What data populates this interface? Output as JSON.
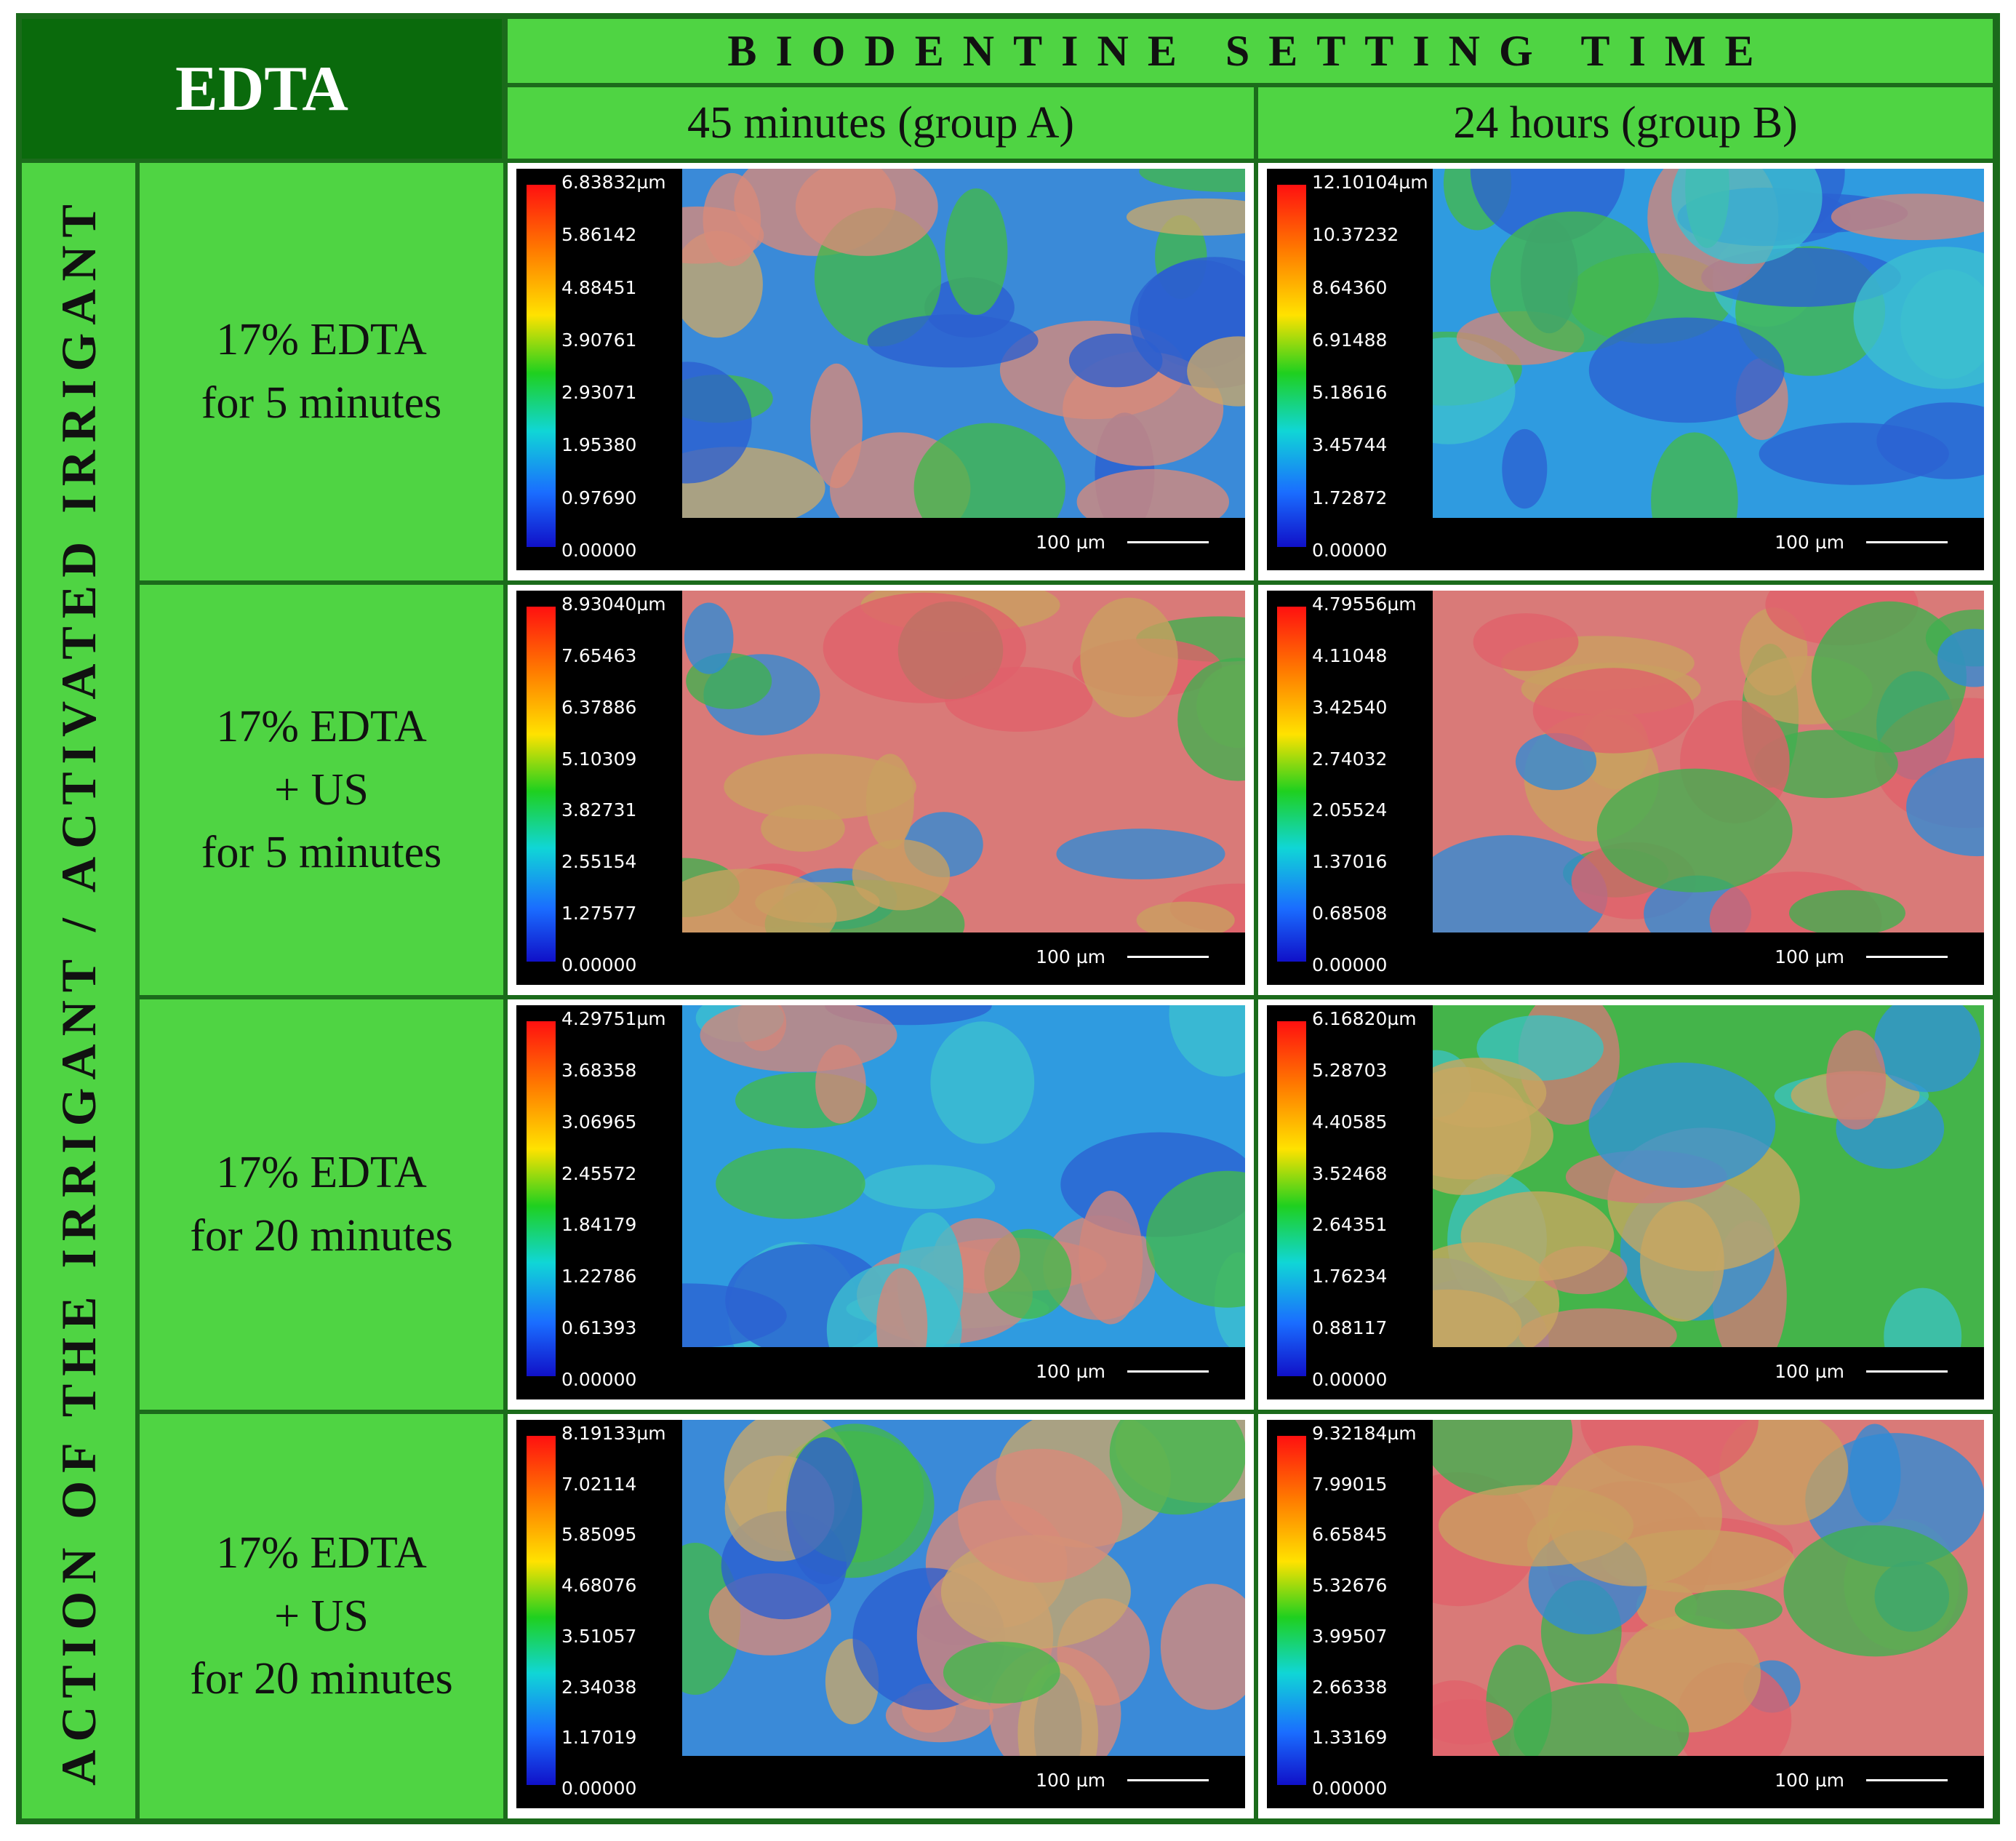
{
  "corner_title": "EDTA",
  "header": "BIODENTINE SETTING TIME",
  "columns": [
    "45 minutes (group A)",
    "24 hours (group B)"
  ],
  "side_label": "ACTION OF THE IRRIGANT / ACTIVATED IRRIGANT",
  "rows": [
    {
      "label": "17% EDTA\nfor 5 minutes"
    },
    {
      "label": "17% EDTA\n+ US\nfor 5 minutes"
    },
    {
      "label": "17% EDTA\nfor 20 minutes"
    },
    {
      "label": "17% EDTA\n+ US\nfor 20 minutes"
    }
  ],
  "panels": [
    {
      "ticks": [
        "6.83832µm",
        "5.86142",
        "4.88451",
        "3.90761",
        "2.93071",
        "1.95380",
        "0.97690",
        "0.00000"
      ],
      "scale": "100 µm",
      "tone": "mixed"
    },
    {
      "ticks": [
        "12.10104µm",
        "10.37232",
        "8.64360",
        "6.91488",
        "5.18616",
        "3.45744",
        "1.72872",
        "0.00000"
      ],
      "scale": "100 µm",
      "tone": "blue"
    },
    {
      "ticks": [
        "8.93040µm",
        "7.65463",
        "6.37886",
        "5.10309",
        "3.82731",
        "2.55154",
        "1.27577",
        "0.00000"
      ],
      "scale": "100 µm",
      "tone": "red"
    },
    {
      "ticks": [
        "4.79556µm",
        "4.11048",
        "3.42540",
        "2.74032",
        "2.05524",
        "1.37016",
        "0.68508",
        "0.00000"
      ],
      "scale": "100 µm",
      "tone": "red"
    },
    {
      "ticks": [
        "4.29751µm",
        "3.68358",
        "3.06965",
        "2.45572",
        "1.84179",
        "1.22786",
        "0.61393",
        "0.00000"
      ],
      "scale": "100 µm",
      "tone": "blue"
    },
    {
      "ticks": [
        "6.16820µm",
        "5.28703",
        "4.40585",
        "3.52468",
        "2.64351",
        "1.76234",
        "0.88117",
        "0.00000"
      ],
      "scale": "100 µm",
      "tone": "green"
    },
    {
      "ticks": [
        "8.19133µm",
        "7.02114",
        "5.85095",
        "4.68076",
        "3.51057",
        "2.34038",
        "1.17019",
        "0.00000"
      ],
      "scale": "100 µm",
      "tone": "mixed"
    },
    {
      "ticks": [
        "9.32184µm",
        "7.99015",
        "6.65845",
        "5.32676",
        "3.99507",
        "2.66338",
        "1.33169",
        "0.00000"
      ],
      "scale": "100 µm",
      "tone": "red"
    }
  ]
}
